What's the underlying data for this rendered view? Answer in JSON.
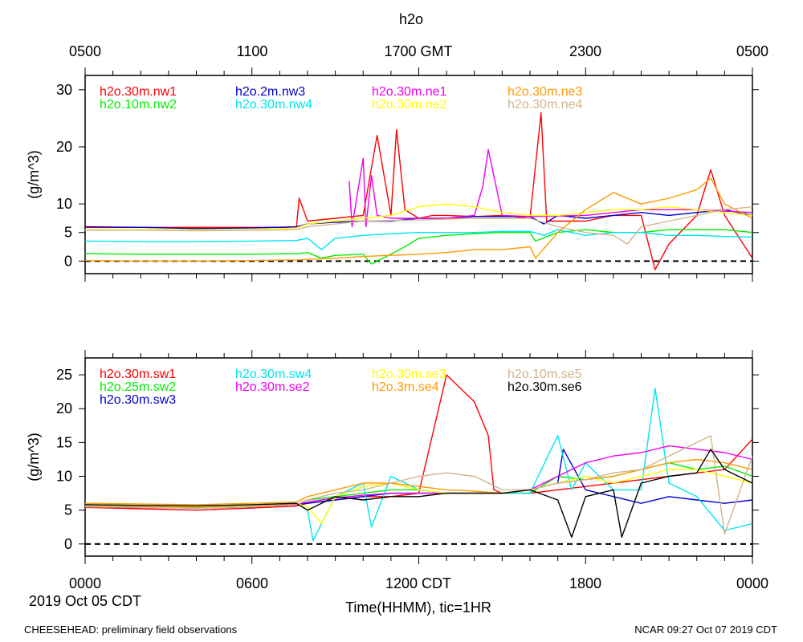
{
  "header": {
    "title": "h2o",
    "top_axis_ticks": [
      "0500",
      "1100",
      "1700 GMT",
      "2300",
      "0500"
    ]
  },
  "bottom_axis": {
    "ticks": [
      "0000",
      "0600",
      "1200 CDT",
      "1800",
      "0000"
    ],
    "date_label": "2019 Oct 05 CDT",
    "xlabel": "Time(HHMM), tic=1HR"
  },
  "footer": {
    "left": "CHEESEHEAD: preliminary field observations",
    "right": "NCAR 09:27 Oct 07 2019 CDT"
  },
  "chart_data": [
    {
      "type": "line",
      "panel": "top",
      "ylabel": "(g/m^3)",
      "ylim": [
        -2.2,
        32.5
      ],
      "yticks": [
        0,
        5,
        10,
        20,
        30
      ],
      "xlim": [
        0,
        24
      ],
      "reference_line": 0,
      "series": [
        {
          "name": "h2o.30m.nw1",
          "color": "#ff0000",
          "x": [
            0,
            7.6,
            7.7,
            8.0,
            9.0,
            10.0,
            10.5,
            11.0,
            11.2,
            11.5,
            12.0,
            12.5,
            13.0,
            14.0,
            15.0,
            16.0,
            16.4,
            16.6,
            18.0,
            19.0,
            20.0,
            20.5,
            21.0,
            22.0,
            22.5,
            23.0,
            24.0
          ],
          "y": [
            5.9,
            5.9,
            11.0,
            7.0,
            7.5,
            8.0,
            22.0,
            8.0,
            23.0,
            9.0,
            7.5,
            8.0,
            8.0,
            7.8,
            8.0,
            7.5,
            26.0,
            7.0,
            7.0,
            8.0,
            8.0,
            -1.5,
            3.0,
            8.0,
            16.0,
            8.0,
            0.5
          ]
        },
        {
          "name": "h2o.10m.nw2",
          "color": "#00ee00",
          "x": [
            0,
            2,
            4,
            6,
            7.6,
            8,
            8.5,
            9,
            10,
            10.3,
            11,
            11.5,
            12,
            13,
            14,
            15,
            16,
            16.2,
            17,
            18,
            19,
            20,
            21,
            22,
            23,
            24
          ],
          "y": [
            1.3,
            1.2,
            1.2,
            1.2,
            1.3,
            1.5,
            0.5,
            1.0,
            1.2,
            -0.5,
            1.2,
            2.5,
            4.0,
            4.5,
            4.8,
            5.0,
            5.0,
            3.5,
            5.0,
            5.5,
            5.0,
            5.0,
            5.5,
            5.5,
            5.5,
            5.0
          ]
        },
        {
          "name": "h2o.2m.nw3",
          "color": "#0000cc",
          "x": [
            0,
            2,
            4,
            6,
            7.6,
            8,
            9,
            10,
            11,
            12,
            13,
            14,
            15,
            16,
            16.5,
            17,
            18,
            19,
            20,
            21,
            22,
            23,
            24
          ],
          "y": [
            6.0,
            5.9,
            5.7,
            5.8,
            6.0,
            6.5,
            6.8,
            7.0,
            7.0,
            7.5,
            7.5,
            7.8,
            7.8,
            7.8,
            6.5,
            8.0,
            7.5,
            8.0,
            8.5,
            8.0,
            8.5,
            9.0,
            8.0
          ]
        },
        {
          "name": "h2o.30m.nw4",
          "color": "#00e5ee",
          "x": [
            0,
            2,
            4,
            6,
            7.6,
            8,
            8.5,
            9,
            10,
            11,
            12,
            13,
            14,
            15,
            16,
            16.5,
            17,
            18,
            19,
            20,
            21,
            22,
            23,
            24
          ],
          "y": [
            3.5,
            3.4,
            3.4,
            3.5,
            3.6,
            4.0,
            2.0,
            4.0,
            4.5,
            4.8,
            5.0,
            5.0,
            5.0,
            5.2,
            5.2,
            4.5,
            5.5,
            4.5,
            5.0,
            5.0,
            4.5,
            4.5,
            4.3,
            4.2
          ]
        },
        {
          "name": "h2o.30m.ne1",
          "color": "#ee00ee",
          "x": [
            9.5,
            9.6,
            10.0,
            10.1,
            10.3,
            10.5,
            11.0,
            12.0,
            13.0,
            14.0,
            14.3,
            14.5,
            15.0,
            16.0,
            18.0,
            20.0,
            22.0,
            24.0
          ],
          "y": [
            14.0,
            6.0,
            18.0,
            6.0,
            15.0,
            8.0,
            7.5,
            7.5,
            7.5,
            8.0,
            13.0,
            19.5,
            8.0,
            7.8,
            8.0,
            9.0,
            9.0,
            8.5
          ]
        },
        {
          "name": "h2o.30m.ne2",
          "color": "#ffff00",
          "x": [
            0,
            6,
            7.6,
            8,
            9,
            10,
            11,
            12,
            13,
            14,
            15,
            16,
            17,
            18,
            19,
            20,
            21,
            22,
            23,
            24
          ],
          "y": [
            5.5,
            5.5,
            5.8,
            6.5,
            7.0,
            7.5,
            8.0,
            9.5,
            10.0,
            9.5,
            8.5,
            8.0,
            8.0,
            8.5,
            9.0,
            9.0,
            9.5,
            9.0,
            8.5,
            8.0
          ]
        },
        {
          "name": "h2o.30m.ne3",
          "color": "#ff9900",
          "x": [
            0,
            2,
            4,
            6,
            7.6,
            8,
            9,
            10,
            11,
            12,
            13,
            14,
            15,
            16,
            16.2,
            17,
            18,
            19,
            20,
            21,
            22,
            22.5,
            23,
            24
          ],
          "y": [
            0.1,
            0.0,
            0.0,
            0.1,
            0.2,
            0.3,
            0.5,
            0.8,
            1.0,
            1.2,
            1.5,
            2.0,
            2.0,
            2.5,
            0.5,
            5.0,
            9.0,
            12.0,
            10.0,
            11.0,
            12.5,
            14.5,
            10.0,
            7.5
          ]
        },
        {
          "name": "h2o.30m.ne4",
          "color": "#d2b48c",
          "x": [
            0,
            2,
            4,
            6,
            7.6,
            8,
            9,
            10,
            12,
            14,
            16,
            17,
            18,
            19,
            19.5,
            20,
            21,
            22,
            23,
            24
          ],
          "y": [
            5.4,
            5.4,
            5.3,
            5.4,
            5.5,
            6.0,
            6.5,
            7.0,
            7.2,
            7.5,
            7.5,
            6.0,
            5.0,
            4.5,
            3.0,
            6.0,
            7.0,
            8.0,
            9.0,
            9.5
          ]
        }
      ],
      "legend": [
        [
          "h2o.30m.nw1",
          "h2o.2m.nw3",
          "h2o.30m.ne1",
          "h2o.30m.ne3"
        ],
        [
          "h2o.10m.nw2",
          "h2o.30m.nw4",
          "h2o.30m.ne2",
          "h2o.30m.ne4"
        ]
      ]
    },
    {
      "type": "line",
      "panel": "bottom",
      "ylabel": "(g/m^3)",
      "ylim": [
        -1.8,
        27.5
      ],
      "yticks": [
        0,
        5,
        10,
        15,
        20,
        25
      ],
      "xlim": [
        0,
        24
      ],
      "reference_line": 0,
      "series": [
        {
          "name": "h2o.30m.sw1",
          "color": "#ff0000",
          "x": [
            0,
            2,
            4,
            6,
            7.6,
            8,
            9,
            10,
            11,
            12,
            13.0,
            13.5,
            14.0,
            14.5,
            14.7,
            15,
            16,
            17,
            18,
            19,
            20,
            21,
            22,
            23,
            24
          ],
          "y": [
            5.4,
            5.2,
            5.0,
            5.3,
            5.6,
            6.0,
            6.5,
            7.0,
            7.0,
            7.5,
            25.0,
            23.0,
            21.0,
            16.0,
            8.0,
            7.5,
            7.5,
            8.0,
            8.5,
            9.0,
            9.5,
            10.0,
            10.5,
            11.0,
            15.5
          ]
        },
        {
          "name": "h2o.25m.sw2",
          "color": "#00ee00",
          "x": [
            0,
            2,
            4,
            6,
            7.6,
            8,
            9,
            10,
            11,
            12,
            13,
            14,
            15,
            16,
            17,
            18,
            19,
            20,
            21,
            22,
            23,
            24
          ],
          "y": [
            5.6,
            5.5,
            5.3,
            5.5,
            5.8,
            6.5,
            7.0,
            7.5,
            8.0,
            8.0,
            7.5,
            7.5,
            7.5,
            7.5,
            10.0,
            9.5,
            10.0,
            11.0,
            12.0,
            11.0,
            11.5,
            10.0
          ]
        },
        {
          "name": "h2o.30m.sw3",
          "color": "#0000cc",
          "x": [
            0,
            2,
            4,
            6,
            7.6,
            8,
            9,
            10,
            11,
            12,
            13,
            14,
            15,
            16,
            17,
            17.2,
            18,
            19,
            20,
            21,
            22,
            23,
            24
          ],
          "y": [
            5.5,
            5.4,
            5.3,
            5.5,
            5.8,
            6.0,
            6.5,
            7.0,
            7.5,
            7.5,
            7.5,
            7.5,
            7.5,
            8.0,
            9.0,
            14.0,
            8.0,
            7.0,
            6.0,
            7.0,
            6.5,
            6.0,
            6.5
          ]
        },
        {
          "name": "h2o.30m.sw4",
          "color": "#00e5ee",
          "x": [
            0,
            2,
            4,
            6,
            7.6,
            8,
            8.2,
            9,
            10,
            10.3,
            11,
            12,
            13,
            14,
            15,
            16,
            17,
            17.5,
            18,
            19,
            20,
            20.5,
            21,
            22,
            23,
            24
          ],
          "y": [
            5.8,
            5.7,
            5.6,
            5.8,
            6.0,
            5.0,
            0.5,
            7.0,
            9.0,
            2.5,
            10.0,
            8.0,
            7.5,
            7.5,
            7.5,
            7.5,
            16.0,
            8.0,
            12.0,
            8.0,
            8.0,
            23.0,
            9.0,
            7.0,
            2.0,
            3.0
          ]
        },
        {
          "name": "h2o.30m.se2",
          "color": "#ee00ee",
          "x": [
            0,
            2,
            4,
            6,
            7.6,
            8,
            9,
            10,
            11,
            12,
            13,
            14,
            15,
            16,
            17,
            18,
            19,
            20,
            21,
            22,
            23,
            24
          ],
          "y": [
            5.6,
            5.5,
            5.4,
            5.6,
            5.9,
            6.2,
            6.8,
            7.2,
            7.5,
            7.5,
            7.5,
            7.5,
            7.5,
            8.0,
            10.0,
            12.0,
            13.0,
            13.5,
            14.5,
            14.0,
            13.5,
            12.5
          ]
        },
        {
          "name": "h2o.30m.se3",
          "color": "#ffff00",
          "x": [
            0,
            2,
            4,
            6,
            7.6,
            8,
            8.5,
            9,
            10,
            11,
            12,
            13,
            14,
            15,
            16,
            17,
            18,
            19,
            20,
            21,
            22,
            23,
            24
          ],
          "y": [
            5.7,
            5.6,
            5.5,
            5.7,
            6.0,
            5.5,
            3.0,
            7.0,
            8.5,
            9.0,
            8.0,
            7.5,
            7.5,
            7.5,
            8.0,
            9.0,
            10.0,
            9.0,
            10.0,
            11.0,
            11.0,
            10.0,
            9.0
          ]
        },
        {
          "name": "h2o.3m.se4",
          "color": "#ff9900",
          "x": [
            0,
            2,
            4,
            6,
            7.6,
            8,
            9,
            10,
            11,
            12,
            13,
            14,
            15,
            16,
            17,
            18,
            19,
            20,
            21,
            22,
            23,
            24
          ],
          "y": [
            6.0,
            5.9,
            5.8,
            6.0,
            6.2,
            7.0,
            8.0,
            9.0,
            9.0,
            8.5,
            8.0,
            7.8,
            7.5,
            8.0,
            9.0,
            9.5,
            10.0,
            11.0,
            12.0,
            12.5,
            12.0,
            11.0
          ]
        },
        {
          "name": "h2o.10m.se5",
          "color": "#d2b48c",
          "x": [
            0,
            2,
            4,
            6,
            7.6,
            8,
            9,
            10,
            11,
            12,
            13,
            14,
            15,
            16,
            17,
            18,
            19,
            20,
            21,
            22,
            22.5,
            23,
            24
          ],
          "y": [
            5.5,
            5.4,
            5.3,
            5.5,
            5.8,
            6.5,
            7.5,
            8.0,
            9.0,
            10.0,
            10.5,
            10.0,
            8.0,
            8.0,
            9.0,
            9.5,
            10.5,
            11.0,
            13.0,
            15.0,
            16.0,
            1.5,
            13.0
          ]
        },
        {
          "name": "h2o.30m.se6",
          "color": "#000000",
          "x": [
            0,
            2,
            4,
            6,
            7.6,
            8,
            9,
            10,
            11,
            12,
            13,
            14,
            15,
            16,
            17,
            17.5,
            18,
            19,
            19.3,
            20,
            21,
            22,
            22.5,
            23,
            24
          ],
          "y": [
            5.8,
            5.7,
            5.6,
            5.8,
            6.0,
            5.0,
            7.0,
            6.5,
            7.0,
            7.0,
            7.5,
            7.5,
            7.5,
            8.0,
            6.5,
            1.0,
            7.0,
            8.0,
            1.0,
            9.0,
            10.0,
            10.5,
            14.0,
            11.0,
            9.0
          ]
        }
      ],
      "legend": [
        [
          "h2o.30m.sw1",
          "h2o.30m.sw4",
          "h2o.30m.se3",
          "h2o.10m.se5"
        ],
        [
          "h2o.25m.sw2",
          "h2o.30m.se2",
          "h2o.3m.se4",
          "h2o.30m.se6"
        ],
        [
          "h2o.30m.sw3",
          "",
          "",
          ""
        ]
      ]
    }
  ]
}
